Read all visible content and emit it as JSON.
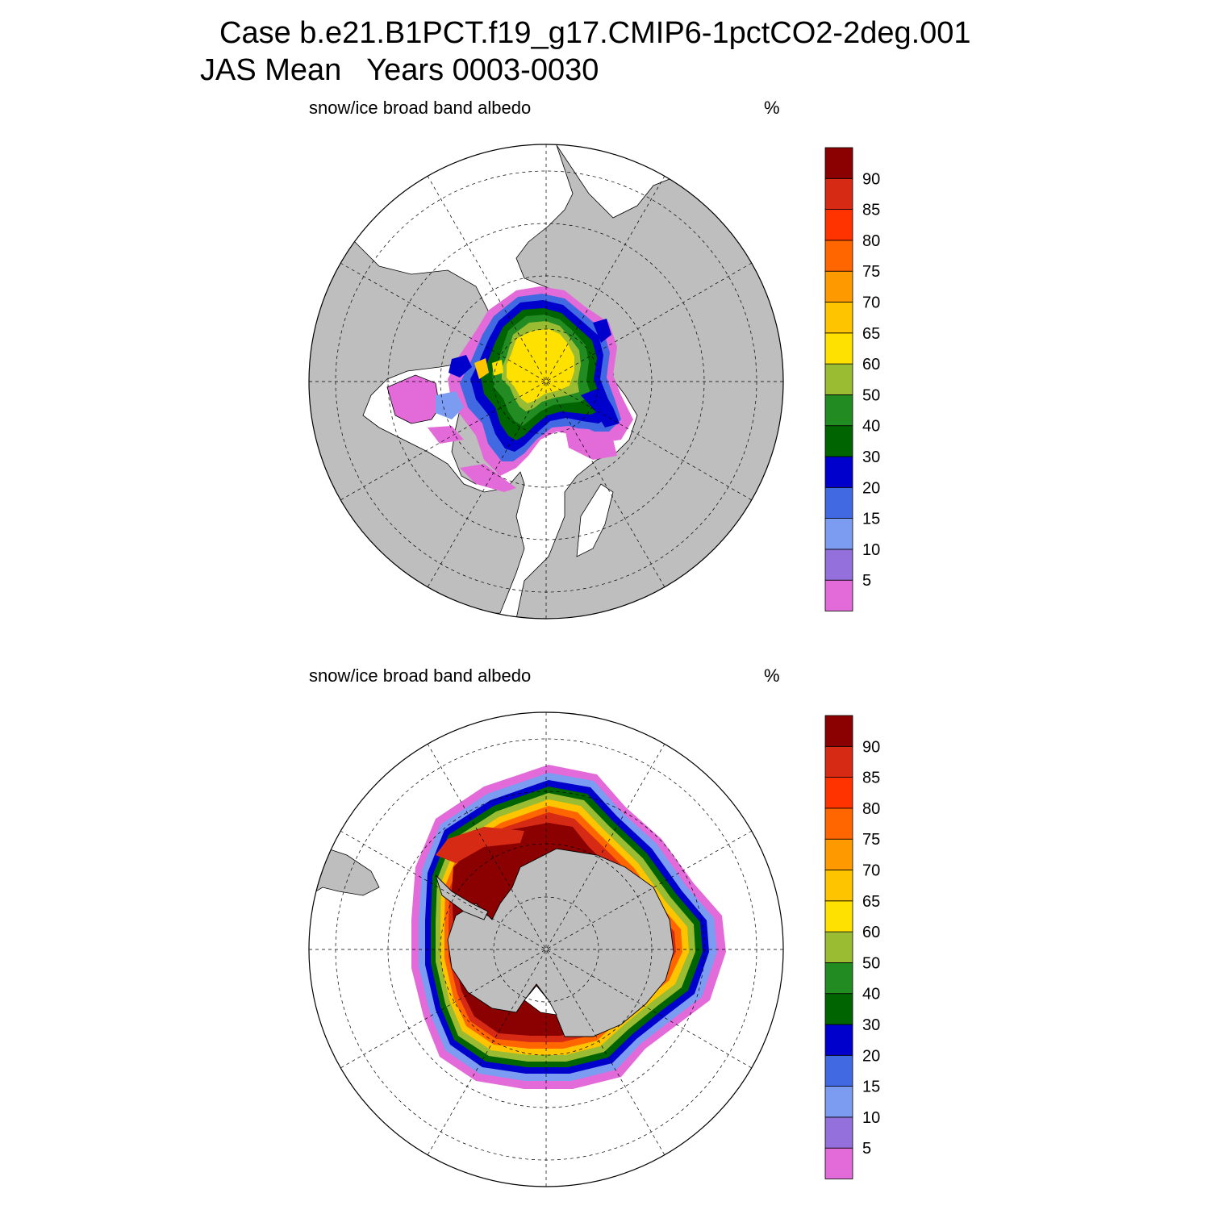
{
  "title": {
    "line1": "Case b.e21.B1PCT.f19_g17.CMIP6-1pctCO2-2deg.001",
    "line2": "JAS Mean   Years 0003-0030"
  },
  "panels": [
    {
      "id": "north",
      "label": "snow/ice broad band albedo",
      "unit": "%"
    },
    {
      "id": "south",
      "label": "snow/ice broad band albedo",
      "unit": "%"
    }
  ],
  "colorbar": {
    "ticks": [
      "5",
      "10",
      "15",
      "20",
      "30",
      "40",
      "50",
      "60",
      "65",
      "70",
      "75",
      "80",
      "85",
      "90"
    ],
    "colors": [
      "#e36bd9",
      "#9370db",
      "#7b9cf0",
      "#4169e1",
      "#0000cd",
      "#006400",
      "#228b22",
      "#9abc32",
      "#ffe100",
      "#ffc400",
      "#ff9900",
      "#ff6600",
      "#ff3300",
      "#d62a14",
      "#8b0000"
    ]
  },
  "map_colors": {
    "land": "#bebebe",
    "ocean": "#ffffff",
    "grid": "#000000"
  },
  "chart_data": {
    "type": "polar-contour-map",
    "variable": "snow/ice broad band albedo",
    "units": "%",
    "levels": [
      5,
      10,
      15,
      20,
      30,
      40,
      50,
      60,
      65,
      70,
      75,
      80,
      85,
      90
    ],
    "north": {
      "max_band": "60-65",
      "central_arctic": "60-65",
      "edge": "5-20"
    },
    "south": {
      "max_band": ">90",
      "interior_pack": ">90",
      "edge": "5-20"
    }
  }
}
